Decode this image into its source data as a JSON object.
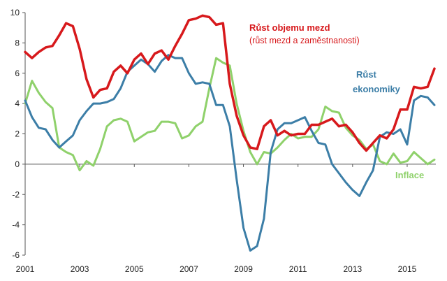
{
  "chart_data": {
    "type": "line",
    "title": "",
    "xlabel": "",
    "ylabel": "",
    "ylim": [
      -6,
      10
    ],
    "yticks": [
      -6,
      -4,
      -2,
      0,
      2,
      4,
      6,
      8,
      10
    ],
    "xticks": [
      "2001",
      "2003",
      "2005",
      "2007",
      "2009",
      "2011",
      "2013",
      "2015"
    ],
    "xlim": [
      2001,
      2016.05
    ],
    "grid": false,
    "series": [
      {
        "name": "Růst objemu mezd",
        "subname": "(růst mezd a zaměstnanosti)",
        "color": "#d7191c",
        "points": [
          [
            2001.0,
            7.4
          ],
          [
            2001.25,
            7.0
          ],
          [
            2001.5,
            7.4
          ],
          [
            2001.75,
            7.7
          ],
          [
            2002.0,
            7.8
          ],
          [
            2002.25,
            8.5
          ],
          [
            2002.5,
            9.3
          ],
          [
            2002.75,
            9.1
          ],
          [
            2003.0,
            7.6
          ],
          [
            2003.25,
            5.6
          ],
          [
            2003.5,
            4.4
          ],
          [
            2003.75,
            4.9
          ],
          [
            2004.0,
            5.0
          ],
          [
            2004.25,
            6.1
          ],
          [
            2004.5,
            6.5
          ],
          [
            2004.75,
            6.0
          ],
          [
            2005.0,
            6.9
          ],
          [
            2005.25,
            7.3
          ],
          [
            2005.5,
            6.6
          ],
          [
            2005.75,
            7.3
          ],
          [
            2006.0,
            7.5
          ],
          [
            2006.25,
            6.9
          ],
          [
            2006.5,
            7.8
          ],
          [
            2006.75,
            8.6
          ],
          [
            2007.0,
            9.5
          ],
          [
            2007.25,
            9.6
          ],
          [
            2007.5,
            9.8
          ],
          [
            2007.75,
            9.7
          ],
          [
            2008.0,
            9.2
          ],
          [
            2008.25,
            9.3
          ],
          [
            2008.5,
            5.3
          ],
          [
            2008.75,
            3.2
          ],
          [
            2009.0,
            1.9
          ],
          [
            2009.25,
            1.1
          ],
          [
            2009.5,
            1.0
          ],
          [
            2009.75,
            2.5
          ],
          [
            2010.0,
            2.9
          ],
          [
            2010.25,
            1.9
          ],
          [
            2010.5,
            2.2
          ],
          [
            2010.75,
            1.9
          ],
          [
            2011.0,
            2.0
          ],
          [
            2011.25,
            2.0
          ],
          [
            2011.5,
            2.6
          ],
          [
            2011.75,
            2.6
          ],
          [
            2012.0,
            2.8
          ],
          [
            2012.25,
            3.0
          ],
          [
            2012.5,
            2.5
          ],
          [
            2012.75,
            2.6
          ],
          [
            2013.0,
            2.1
          ],
          [
            2013.25,
            1.4
          ],
          [
            2013.5,
            0.9
          ],
          [
            2013.75,
            1.4
          ],
          [
            2014.0,
            1.9
          ],
          [
            2014.25,
            1.7
          ],
          [
            2014.5,
            2.3
          ],
          [
            2014.75,
            3.6
          ],
          [
            2015.0,
            3.6
          ],
          [
            2015.25,
            5.1
          ],
          [
            2015.5,
            5.0
          ],
          [
            2015.75,
            5.1
          ],
          [
            2016.0,
            6.3
          ]
        ]
      },
      {
        "name": "Růst",
        "subname": "ekonomiky",
        "color": "#3c7ea7",
        "points": [
          [
            2001.0,
            4.2
          ],
          [
            2001.25,
            3.1
          ],
          [
            2001.5,
            2.4
          ],
          [
            2001.75,
            2.3
          ],
          [
            2002.0,
            1.6
          ],
          [
            2002.25,
            1.1
          ],
          [
            2002.5,
            1.5
          ],
          [
            2002.75,
            1.9
          ],
          [
            2003.0,
            2.9
          ],
          [
            2003.25,
            3.5
          ],
          [
            2003.5,
            4.0
          ],
          [
            2003.75,
            4.0
          ],
          [
            2004.0,
            4.1
          ],
          [
            2004.25,
            4.3
          ],
          [
            2004.5,
            5.0
          ],
          [
            2004.75,
            6.1
          ],
          [
            2005.0,
            6.5
          ],
          [
            2005.25,
            6.9
          ],
          [
            2005.5,
            6.6
          ],
          [
            2005.75,
            6.1
          ],
          [
            2006.0,
            6.8
          ],
          [
            2006.25,
            7.2
          ],
          [
            2006.5,
            7.0
          ],
          [
            2006.75,
            7.0
          ],
          [
            2007.0,
            6.0
          ],
          [
            2007.25,
            5.3
          ],
          [
            2007.5,
            5.4
          ],
          [
            2007.75,
            5.3
          ],
          [
            2008.0,
            3.9
          ],
          [
            2008.25,
            3.9
          ],
          [
            2008.5,
            2.5
          ],
          [
            2008.75,
            -1.0
          ],
          [
            2009.0,
            -4.2
          ],
          [
            2009.25,
            -5.7
          ],
          [
            2009.5,
            -5.4
          ],
          [
            2009.75,
            -3.6
          ],
          [
            2010.0,
            0.8
          ],
          [
            2010.25,
            2.3
          ],
          [
            2010.5,
            2.7
          ],
          [
            2010.75,
            2.7
          ],
          [
            2011.0,
            2.9
          ],
          [
            2011.25,
            3.1
          ],
          [
            2011.5,
            2.2
          ],
          [
            2011.75,
            1.4
          ],
          [
            2012.0,
            1.3
          ],
          [
            2012.25,
            0.0
          ],
          [
            2012.5,
            -0.6
          ],
          [
            2012.75,
            -1.2
          ],
          [
            2013.0,
            -1.7
          ],
          [
            2013.25,
            -2.1
          ],
          [
            2013.5,
            -1.2
          ],
          [
            2013.75,
            -0.4
          ],
          [
            2014.0,
            1.8
          ],
          [
            2014.25,
            2.1
          ],
          [
            2014.5,
            2.0
          ],
          [
            2014.75,
            2.3
          ],
          [
            2015.0,
            1.3
          ],
          [
            2015.25,
            4.2
          ],
          [
            2015.5,
            4.5
          ],
          [
            2015.75,
            4.4
          ],
          [
            2016.0,
            3.9
          ],
          [
            2016.25,
            3.0
          ]
        ]
      },
      {
        "name": "Inflace",
        "subname": "",
        "color": "#8fd16b",
        "points": [
          [
            2001.0,
            4.0
          ],
          [
            2001.25,
            5.5
          ],
          [
            2001.5,
            4.7
          ],
          [
            2001.75,
            4.1
          ],
          [
            2002.0,
            3.7
          ],
          [
            2002.25,
            1.1
          ],
          [
            2002.5,
            0.8
          ],
          [
            2002.75,
            0.6
          ],
          [
            2003.0,
            -0.4
          ],
          [
            2003.25,
            0.2
          ],
          [
            2003.5,
            -0.1
          ],
          [
            2003.75,
            1.0
          ],
          [
            2004.0,
            2.5
          ],
          [
            2004.25,
            2.9
          ],
          [
            2004.5,
            3.0
          ],
          [
            2004.75,
            2.8
          ],
          [
            2005.0,
            1.5
          ],
          [
            2005.25,
            1.8
          ],
          [
            2005.5,
            2.1
          ],
          [
            2005.75,
            2.2
          ],
          [
            2006.0,
            2.8
          ],
          [
            2006.25,
            2.8
          ],
          [
            2006.5,
            2.7
          ],
          [
            2006.75,
            1.7
          ],
          [
            2007.0,
            1.9
          ],
          [
            2007.25,
            2.5
          ],
          [
            2007.5,
            2.8
          ],
          [
            2007.75,
            5.0
          ],
          [
            2008.0,
            7.0
          ],
          [
            2008.25,
            6.7
          ],
          [
            2008.5,
            6.5
          ],
          [
            2008.75,
            4.0
          ],
          [
            2009.0,
            2.2
          ],
          [
            2009.25,
            0.8
          ],
          [
            2009.5,
            0.0
          ],
          [
            2009.75,
            0.8
          ],
          [
            2010.0,
            0.7
          ],
          [
            2010.25,
            1.1
          ],
          [
            2010.5,
            1.6
          ],
          [
            2010.75,
            2.0
          ],
          [
            2011.0,
            1.7
          ],
          [
            2011.25,
            1.8
          ],
          [
            2011.5,
            1.8
          ],
          [
            2011.75,
            2.3
          ],
          [
            2012.0,
            3.8
          ],
          [
            2012.25,
            3.5
          ],
          [
            2012.5,
            3.4
          ],
          [
            2012.75,
            2.4
          ],
          [
            2013.0,
            1.9
          ],
          [
            2013.25,
            1.6
          ],
          [
            2013.5,
            1.0
          ],
          [
            2013.75,
            1.3
          ],
          [
            2014.0,
            0.2
          ],
          [
            2014.25,
            0.0
          ],
          [
            2014.5,
            0.7
          ],
          [
            2014.75,
            0.1
          ],
          [
            2015.0,
            0.2
          ],
          [
            2015.25,
            0.8
          ],
          [
            2015.5,
            0.4
          ],
          [
            2015.75,
            0.0
          ],
          [
            2016.0,
            0.3
          ]
        ]
      }
    ]
  }
}
